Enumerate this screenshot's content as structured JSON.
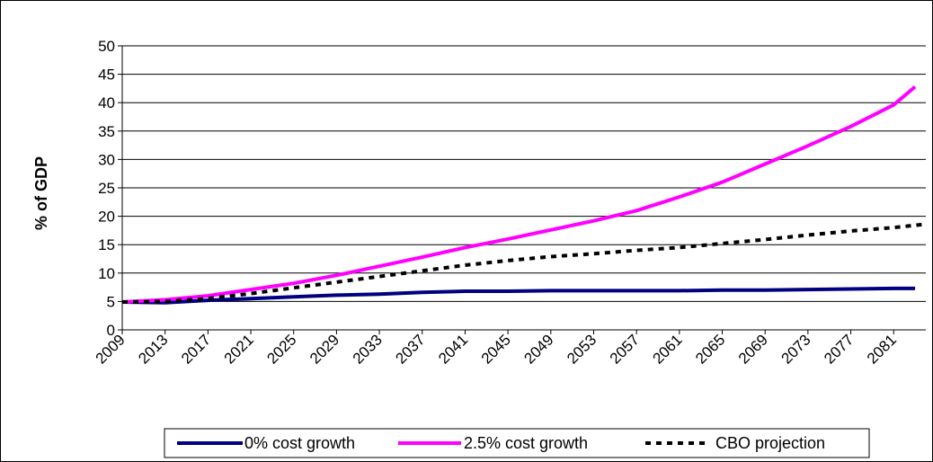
{
  "chart_data": {
    "type": "line",
    "title": "",
    "xlabel": "",
    "ylabel": "% of GDP",
    "x_start": 2009,
    "x_end": 2084,
    "x_tick_labels": [
      "2009",
      "2013",
      "2017",
      "2021",
      "2025",
      "2029",
      "2033",
      "2037",
      "2041",
      "2045",
      "2049",
      "2053",
      "2057",
      "2061",
      "2065",
      "2069",
      "2073",
      "2077",
      "2081"
    ],
    "y_ticks": [
      0,
      5,
      10,
      15,
      20,
      25,
      30,
      35,
      40,
      45,
      50
    ],
    "ylim": [
      0,
      50
    ],
    "grid": "horizontal",
    "legend_position": "bottom",
    "series": [
      {
        "name": "0% cost growth",
        "color": "#000080",
        "style": "solid",
        "x": [
          2009,
          2013,
          2017,
          2021,
          2025,
          2029,
          2033,
          2037,
          2041,
          2045,
          2049,
          2053,
          2057,
          2061,
          2065,
          2069,
          2073,
          2077,
          2081,
          2083
        ],
        "y": [
          4.9,
          4.8,
          5.2,
          5.5,
          5.8,
          6.1,
          6.3,
          6.6,
          6.8,
          6.8,
          6.9,
          6.9,
          6.9,
          6.9,
          7.0,
          7.0,
          7.1,
          7.2,
          7.3,
          7.3
        ]
      },
      {
        "name": "2.5% cost growth",
        "color": "#ff00ff",
        "style": "solid",
        "x": [
          2009,
          2013,
          2017,
          2021,
          2025,
          2029,
          2033,
          2037,
          2041,
          2045,
          2049,
          2053,
          2057,
          2061,
          2065,
          2069,
          2073,
          2077,
          2081,
          2083
        ],
        "y": [
          4.9,
          5.3,
          6.0,
          7.1,
          8.2,
          9.6,
          11.2,
          12.8,
          14.5,
          16.0,
          17.6,
          19.2,
          21.0,
          23.4,
          26.0,
          29.2,
          32.4,
          35.8,
          39.6,
          42.8
        ]
      },
      {
        "name": "CBO projection",
        "color": "#000000",
        "style": "dashed",
        "x": [
          2009,
          2013,
          2017,
          2021,
          2025,
          2029,
          2033,
          2037,
          2041,
          2045,
          2049,
          2053,
          2057,
          2061,
          2065,
          2069,
          2073,
          2077,
          2081,
          2084
        ],
        "y": [
          4.9,
          5.0,
          5.5,
          6.4,
          7.4,
          8.4,
          9.4,
          10.4,
          11.4,
          12.2,
          12.9,
          13.4,
          14.0,
          14.5,
          15.2,
          15.9,
          16.7,
          17.4,
          18.0,
          18.6
        ]
      }
    ]
  }
}
